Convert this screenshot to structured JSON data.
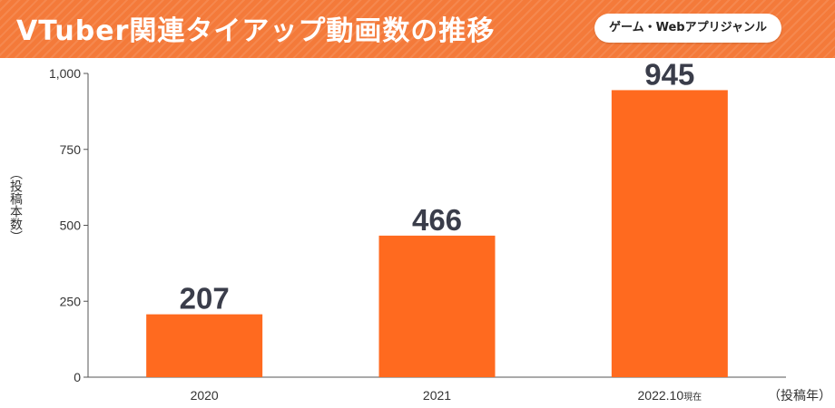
{
  "header": {
    "title": "VTuber関連タイアップ動画数の推移",
    "badge": "ゲーム・Webアプリジャンル"
  },
  "colors": {
    "header_bg": "#f47a3a",
    "bar": "#ff6a1f",
    "value_text": "#3a3d4a"
  },
  "chart_data": {
    "type": "bar",
    "categories": [
      "2020",
      "2021",
      "2022.10"
    ],
    "category_suffix": [
      "",
      "",
      "現在"
    ],
    "values": [
      207,
      466,
      945
    ],
    "data_labels": [
      "207",
      "466",
      "945"
    ],
    "ylabel": "（投稿本数）",
    "xlabel": "（投稿年）",
    "ylim": [
      0,
      1000
    ],
    "yticks": [
      0,
      250,
      500,
      750,
      1000
    ],
    "ytick_labels": [
      "0",
      "250",
      "500",
      "750",
      "1,000"
    ],
    "grid": false,
    "legend": "none"
  }
}
